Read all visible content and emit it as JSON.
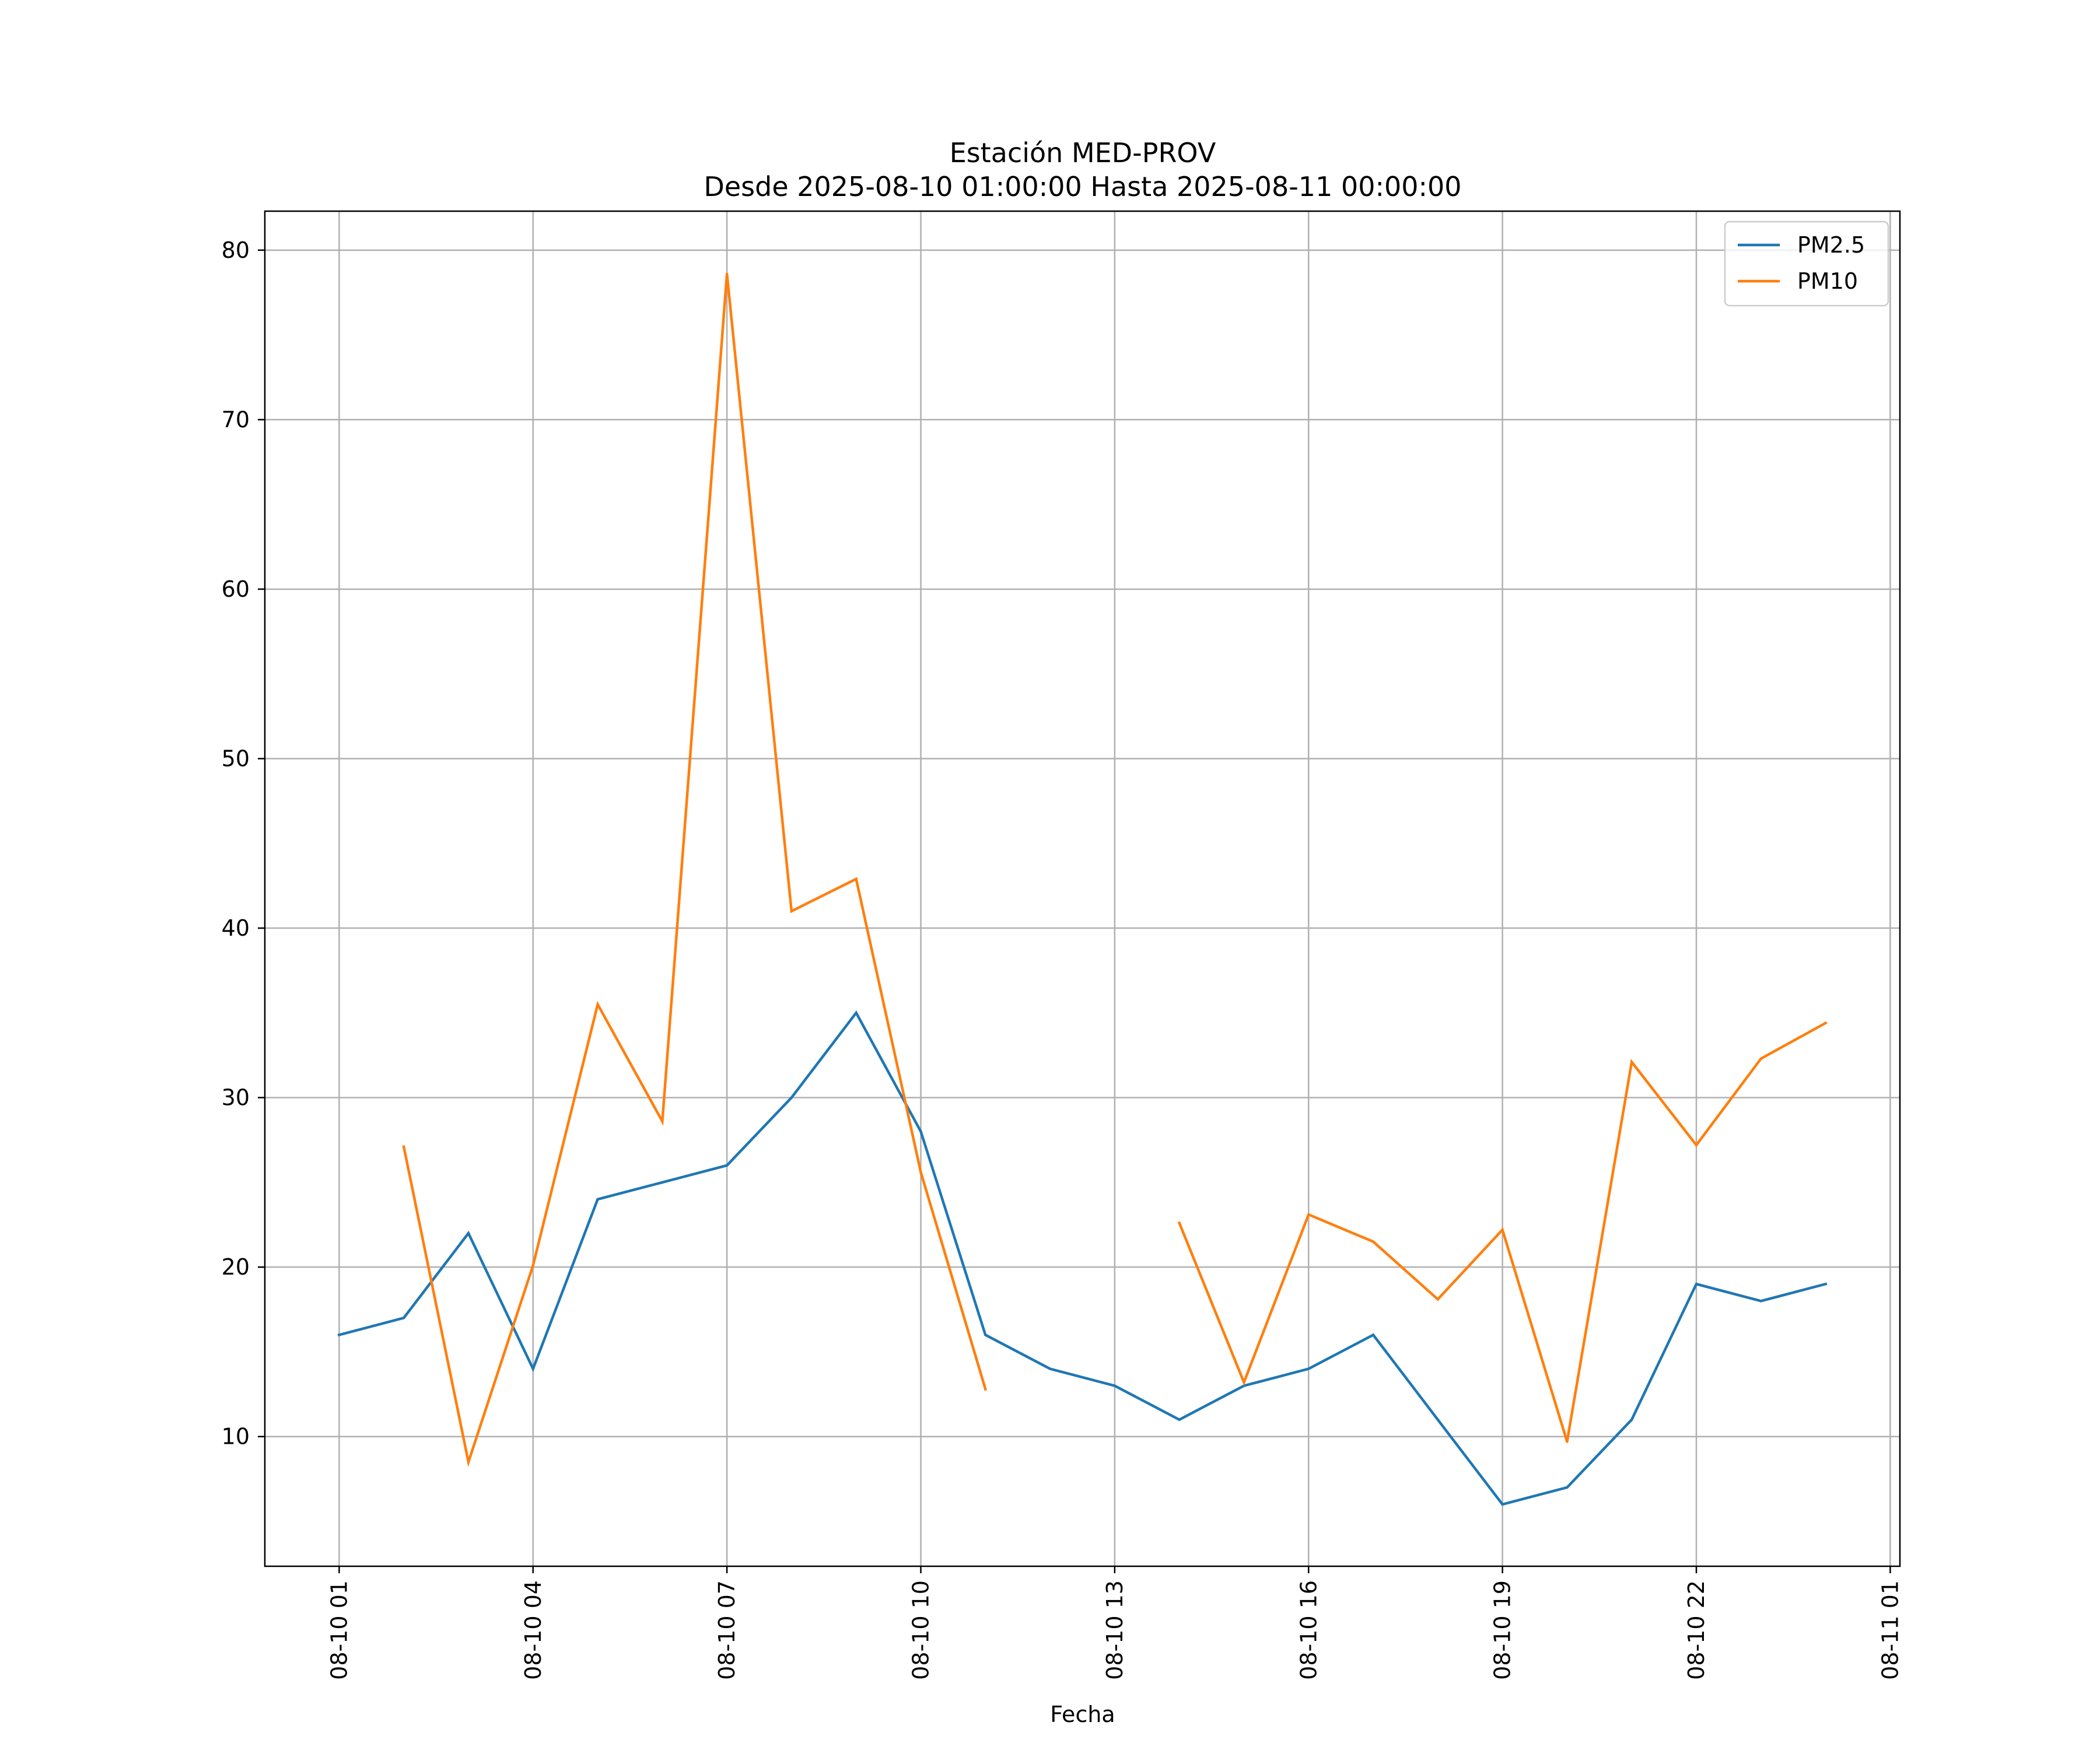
{
  "chart_data": {
    "type": "line",
    "title": "Estación MED-PROV",
    "subtitle": "Desde 2025-08-10 01:00:00 Hasta 2025-08-11 00:00:00",
    "xlabel": "Fecha",
    "ylabel": "",
    "x_hours": [
      1,
      2,
      3,
      4,
      5,
      6,
      7,
      8,
      9,
      10,
      11,
      12,
      13,
      14,
      15,
      16,
      17,
      18,
      19,
      20,
      21,
      22,
      23,
      24
    ],
    "xlim": [
      -0.15,
      25.15
    ],
    "ylim": [
      2.35,
      82.3
    ],
    "grid": true,
    "legend_position": "top-right",
    "x_ticks": [
      {
        "hour": 1,
        "label": "08-10 01"
      },
      {
        "hour": 4,
        "label": "08-10 04"
      },
      {
        "hour": 7,
        "label": "08-10 07"
      },
      {
        "hour": 10,
        "label": "08-10 10"
      },
      {
        "hour": 13,
        "label": "08-10 13"
      },
      {
        "hour": 16,
        "label": "08-10 16"
      },
      {
        "hour": 19,
        "label": "08-10 19"
      },
      {
        "hour": 22,
        "label": "08-10 22"
      },
      {
        "hour": 25,
        "label": "08-11 01"
      }
    ],
    "y_ticks": [
      {
        "value": 10,
        "label": "10"
      },
      {
        "value": 20,
        "label": "20"
      },
      {
        "value": 30,
        "label": "30"
      },
      {
        "value": 40,
        "label": "40"
      },
      {
        "value": 50,
        "label": "50"
      },
      {
        "value": 60,
        "label": "60"
      },
      {
        "value": 70,
        "label": "70"
      },
      {
        "value": 80,
        "label": "80"
      }
    ],
    "series": [
      {
        "name": "PM2.5",
        "color": "#1f77b4",
        "values": [
          16,
          17,
          22,
          14,
          24,
          25,
          26,
          30,
          35,
          28,
          16,
          14,
          13,
          11,
          13,
          14,
          16,
          11,
          6,
          7,
          11,
          19,
          18,
          19
        ]
      },
      {
        "name": "PM10",
        "color": "#ff7f0e",
        "values": [
          null,
          27.1,
          8.5,
          20.1,
          35.5,
          28.6,
          78.6,
          41.0,
          42.9,
          25.6,
          12.8,
          null,
          null,
          22.6,
          13.2,
          23.1,
          21.5,
          18.1,
          22.2,
          9.7,
          32.1,
          27.2,
          32.3,
          34.4
        ]
      }
    ]
  }
}
